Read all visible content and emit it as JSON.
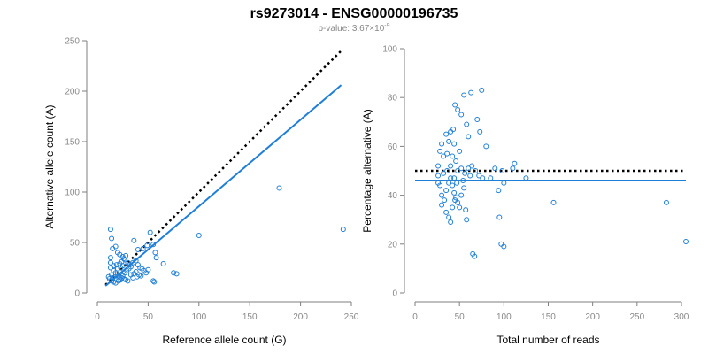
{
  "title": "rs9273014 - ENSG00000196735",
  "subtitle": {
    "prefix": "p-value: 3.67×10",
    "exponent": "-9"
  },
  "colors": {
    "points": "#1f7fd8",
    "fit_line": "#1f7fd8",
    "reference_line": "#000000",
    "axis": "#7f7f7f",
    "tick_labels": "#888888"
  },
  "chart_data": [
    {
      "type": "scatter",
      "xlabel": "Reference allele count (G)",
      "ylabel": "Alternative allele count (A)",
      "xlim": [
        0,
        250
      ],
      "ylim": [
        0,
        250
      ],
      "xticks": [
        0,
        50,
        100,
        150,
        200,
        250
      ],
      "yticks": [
        0,
        50,
        100,
        150,
        200,
        250
      ],
      "reference_line": {
        "style": "dotted",
        "from": [
          8,
          8
        ],
        "to": [
          240,
          240
        ]
      },
      "fit_line": {
        "style": "solid",
        "from": [
          8,
          7
        ],
        "to": [
          240,
          206
        ]
      },
      "points": [
        [
          179,
          104
        ],
        [
          242,
          63
        ],
        [
          100,
          57
        ],
        [
          65,
          29
        ],
        [
          52,
          60
        ],
        [
          55,
          48
        ],
        [
          58,
          35
        ],
        [
          57,
          40
        ],
        [
          75,
          20
        ],
        [
          78,
          19
        ],
        [
          55,
          12
        ],
        [
          56,
          11
        ],
        [
          49,
          47
        ],
        [
          45,
          44
        ],
        [
          40,
          43
        ],
        [
          36,
          52
        ],
        [
          13,
          63
        ],
        [
          14,
          54
        ],
        [
          15,
          44
        ],
        [
          13,
          35
        ],
        [
          13,
          30
        ],
        [
          13,
          25
        ],
        [
          14,
          18
        ],
        [
          18,
          46
        ],
        [
          20,
          40
        ],
        [
          22,
          38
        ],
        [
          25,
          36
        ],
        [
          27,
          33
        ],
        [
          30,
          30
        ],
        [
          32,
          28
        ],
        [
          16,
          22
        ],
        [
          18,
          20
        ],
        [
          20,
          18
        ],
        [
          22,
          16
        ],
        [
          24,
          15
        ],
        [
          26,
          14
        ],
        [
          28,
          13
        ],
        [
          30,
          12
        ],
        [
          12,
          14
        ],
        [
          14,
          12
        ],
        [
          16,
          11
        ],
        [
          18,
          10
        ],
        [
          11,
          16
        ],
        [
          15,
          15
        ],
        [
          17,
          14
        ],
        [
          19,
          13
        ],
        [
          21,
          12
        ],
        [
          23,
          13
        ],
        [
          25,
          17
        ],
        [
          27,
          20
        ],
        [
          29,
          22
        ],
        [
          31,
          24
        ],
        [
          33,
          26
        ],
        [
          35,
          30
        ],
        [
          38,
          32
        ],
        [
          40,
          28
        ],
        [
          42,
          25
        ],
        [
          44,
          24
        ],
        [
          46,
          22
        ],
        [
          48,
          20
        ],
        [
          50,
          23
        ],
        [
          33,
          18
        ],
        [
          36,
          19
        ],
        [
          38,
          21
        ],
        [
          41,
          18
        ],
        [
          35,
          15
        ],
        [
          39,
          16
        ],
        [
          43,
          17
        ],
        [
          16,
          27
        ],
        [
          19,
          28
        ],
        [
          22,
          29
        ],
        [
          24,
          31
        ],
        [
          26,
          34
        ],
        [
          28,
          37
        ],
        [
          20,
          24
        ],
        [
          23,
          25
        ],
        [
          25,
          27
        ]
      ]
    },
    {
      "type": "scatter",
      "xlabel": "Total number of reads",
      "ylabel": "Percentage alternative (A)",
      "xlim": [
        0,
        300
      ],
      "ylim": [
        0,
        100
      ],
      "xticks": [
        0,
        50,
        100,
        150,
        200,
        250,
        300
      ],
      "yticks": [
        0,
        20,
        40,
        60,
        80,
        100
      ],
      "reference_line": {
        "style": "dotted",
        "y": 50,
        "x_range": [
          0,
          305
        ]
      },
      "fit_line": {
        "style": "solid",
        "y": 46,
        "x_range": [
          0,
          305
        ]
      },
      "points": [
        [
          75,
          83
        ],
        [
          55,
          81
        ],
        [
          63,
          82
        ],
        [
          58,
          69
        ],
        [
          70,
          71
        ],
        [
          45,
          77
        ],
        [
          48,
          75
        ],
        [
          52,
          73
        ],
        [
          73,
          66
        ],
        [
          80,
          60
        ],
        [
          60,
          64
        ],
        [
          35,
          65
        ],
        [
          40,
          66
        ],
        [
          43,
          67
        ],
        [
          38,
          62
        ],
        [
          44,
          61
        ],
        [
          50,
          58
        ],
        [
          30,
          61
        ],
        [
          28,
          58
        ],
        [
          32,
          56
        ],
        [
          36,
          57
        ],
        [
          42,
          56
        ],
        [
          46,
          54
        ],
        [
          26,
          52
        ],
        [
          48,
          50
        ],
        [
          52,
          51
        ],
        [
          56,
          49
        ],
        [
          60,
          51
        ],
        [
          64,
          52
        ],
        [
          68,
          50
        ],
        [
          72,
          48
        ],
        [
          76,
          47
        ],
        [
          90,
          51
        ],
        [
          98,
          50
        ],
        [
          110,
          51
        ],
        [
          112,
          53
        ],
        [
          125,
          47
        ],
        [
          26,
          48
        ],
        [
          28,
          44
        ],
        [
          30,
          40
        ],
        [
          33,
          38
        ],
        [
          35,
          42
        ],
        [
          38,
          45
        ],
        [
          40,
          47
        ],
        [
          42,
          44
        ],
        [
          44,
          41
        ],
        [
          46,
          39
        ],
        [
          48,
          37
        ],
        [
          50,
          35
        ],
        [
          52,
          40
        ],
        [
          55,
          43
        ],
        [
          57,
          34
        ],
        [
          58,
          30
        ],
        [
          30,
          36
        ],
        [
          35,
          33
        ],
        [
          38,
          31
        ],
        [
          40,
          29
        ],
        [
          42,
          35
        ],
        [
          45,
          38
        ],
        [
          67,
          15
        ],
        [
          65,
          16
        ],
        [
          97,
          20
        ],
        [
          100,
          19
        ],
        [
          95,
          31
        ],
        [
          94,
          42
        ],
        [
          100,
          45
        ],
        [
          85,
          47
        ],
        [
          156,
          37
        ],
        [
          283,
          37
        ],
        [
          305,
          21
        ],
        [
          26,
          45
        ],
        [
          32,
          49
        ],
        [
          36,
          50
        ],
        [
          40,
          52
        ],
        [
          44,
          47
        ],
        [
          47,
          45
        ],
        [
          54,
          46
        ],
        [
          62,
          48
        ]
      ]
    }
  ]
}
